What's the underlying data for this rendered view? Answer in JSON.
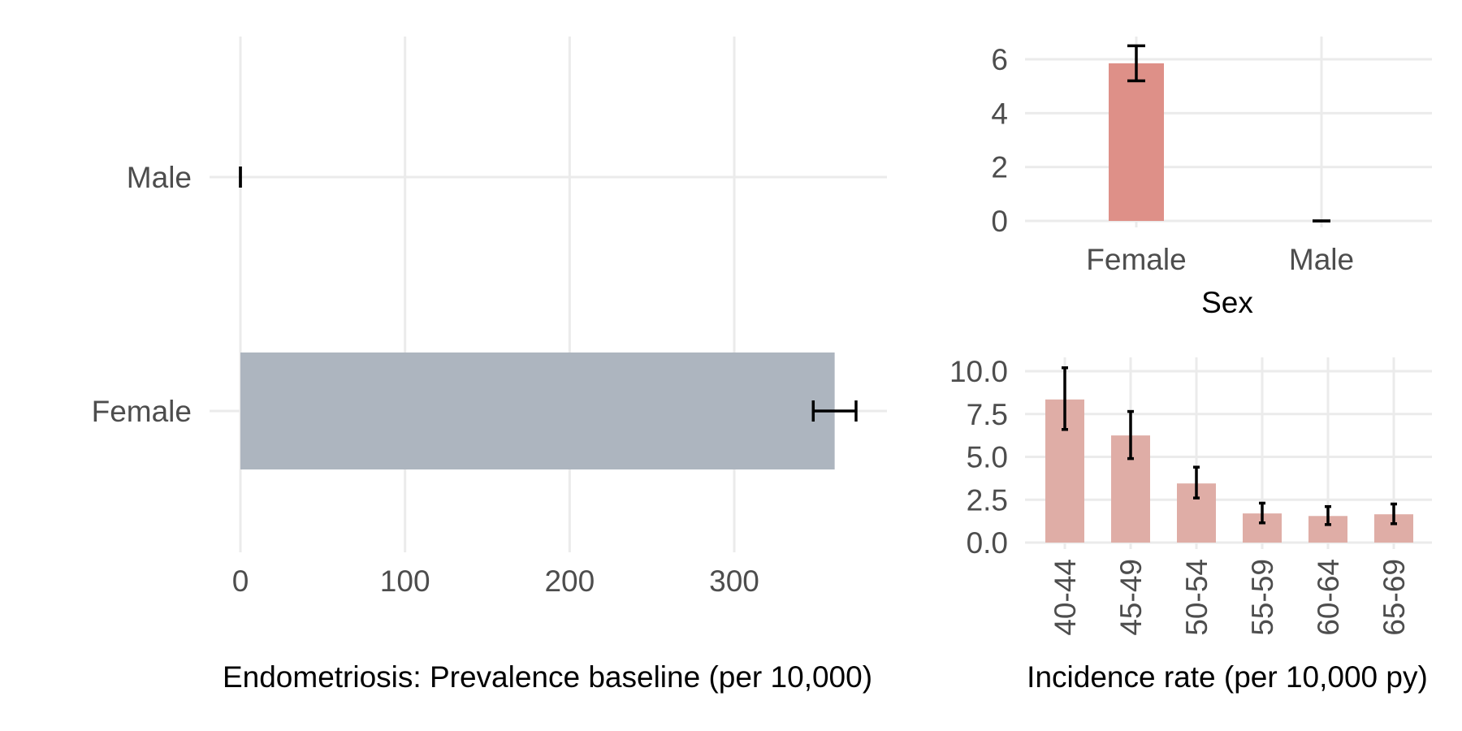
{
  "chart_data": [
    {
      "type": "bar",
      "orientation": "horizontal",
      "categories": [
        "Male",
        "Female"
      ],
      "values": [
        0,
        361
      ],
      "error_low": [
        0,
        348
      ],
      "error_high": [
        0,
        374
      ],
      "bar_color": "#adb5bf",
      "xlabel": "Endometriosis: Prevalence baseline (per 10,000)",
      "xticks": [
        "0",
        "100",
        "200",
        "300"
      ],
      "xlim": [
        0,
        390
      ],
      "grid": true
    },
    {
      "type": "bar",
      "categories": [
        "Female",
        "Male"
      ],
      "values": [
        5.85,
        0
      ],
      "error_low": [
        5.2,
        0
      ],
      "error_high": [
        6.5,
        0
      ],
      "bar_color": "#de9088",
      "xlabel": "Sex",
      "yticks": [
        "0",
        "2",
        "4",
        "6"
      ],
      "ylim": [
        0,
        6.8
      ],
      "grid": true
    },
    {
      "type": "bar",
      "categories": [
        "40-44",
        "45-49",
        "50-54",
        "55-59",
        "60-64",
        "65-69"
      ],
      "values": [
        8.35,
        6.25,
        3.45,
        1.7,
        1.55,
        1.65
      ],
      "error_low": [
        6.6,
        4.9,
        2.6,
        1.15,
        1.05,
        1.1
      ],
      "error_high": [
        10.2,
        7.65,
        4.4,
        2.3,
        2.1,
        2.25
      ],
      "bar_color": "#dfada6",
      "xlabel": "Incidence rate (per 10,000 py)",
      "yticks": [
        "0.0",
        "2.5",
        "5.0",
        "7.5",
        "10.0"
      ],
      "ylim": [
        0,
        10.6
      ],
      "grid": true
    }
  ]
}
